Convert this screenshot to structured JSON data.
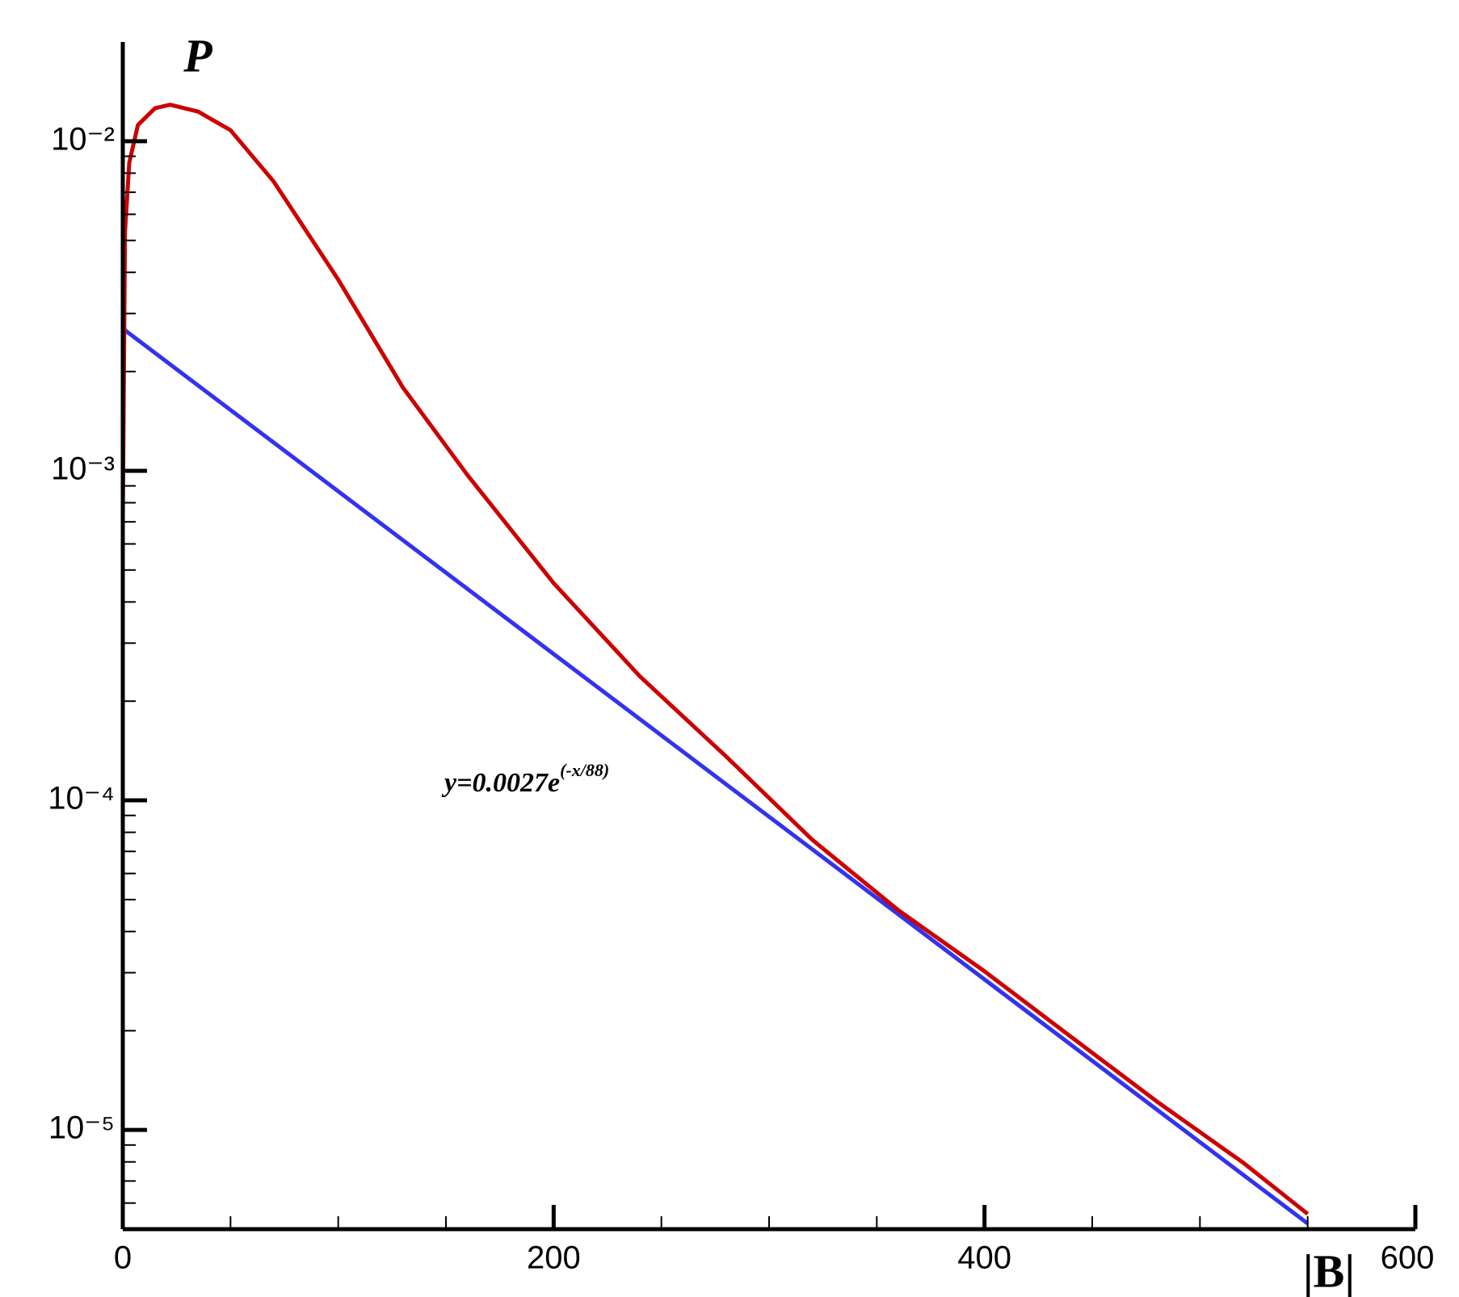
{
  "chart_data": {
    "type": "line",
    "y_label": "P",
    "x_label": "|B|",
    "annotation": {
      "text": "y=0.0027e",
      "exponent": "(-x/88)"
    },
    "log_y": true,
    "xlim": [
      0,
      600
    ],
    "ylim": [
      5e-06,
      0.02
    ],
    "xticks": [
      0,
      200,
      400,
      600
    ],
    "xminorticks": [
      50,
      100,
      150,
      250,
      300,
      350,
      450,
      500,
      550
    ],
    "yticks": [
      {
        "value": 0.01,
        "label": "10⁻²"
      },
      {
        "value": 0.001,
        "label": "10⁻³"
      },
      {
        "value": 0.0001,
        "label": "10⁻⁴"
      },
      {
        "value": 1e-05,
        "label": "10⁻⁵"
      }
    ],
    "yminorticks": [
      6e-06,
      7e-06,
      8e-06,
      9e-06,
      2e-05,
      3e-05,
      4e-05,
      5e-05,
      6e-05,
      7e-05,
      8e-05,
      9e-05,
      0.0002,
      0.0003,
      0.0004,
      0.0005,
      0.0006,
      0.0007,
      0.0008,
      0.0009,
      0.002,
      0.003,
      0.004,
      0.005,
      0.006,
      0.007,
      0.008,
      0.009
    ],
    "series": [
      {
        "color": "#3333ee",
        "x": [
          0,
          550
        ],
        "values": [
          0.0027,
          5.2e-06
        ]
      },
      {
        "color": "#cc0000",
        "x": [
          0,
          1,
          3,
          7,
          15,
          22,
          35,
          50,
          70,
          100,
          130,
          160,
          200,
          240,
          280,
          320,
          360,
          400,
          440,
          480,
          520,
          550
        ],
        "values": [
          0.0007,
          0.0053,
          0.0086,
          0.0112,
          0.0126,
          0.0129,
          0.0123,
          0.0108,
          0.00755,
          0.0038,
          0.00179,
          0.00097,
          0.000456,
          0.000238,
          0.000136,
          7.6e-05,
          4.64e-05,
          3.03e-05,
          1.92e-05,
          1.22e-05,
          7.96e-06,
          5.56e-06
        ]
      }
    ]
  }
}
